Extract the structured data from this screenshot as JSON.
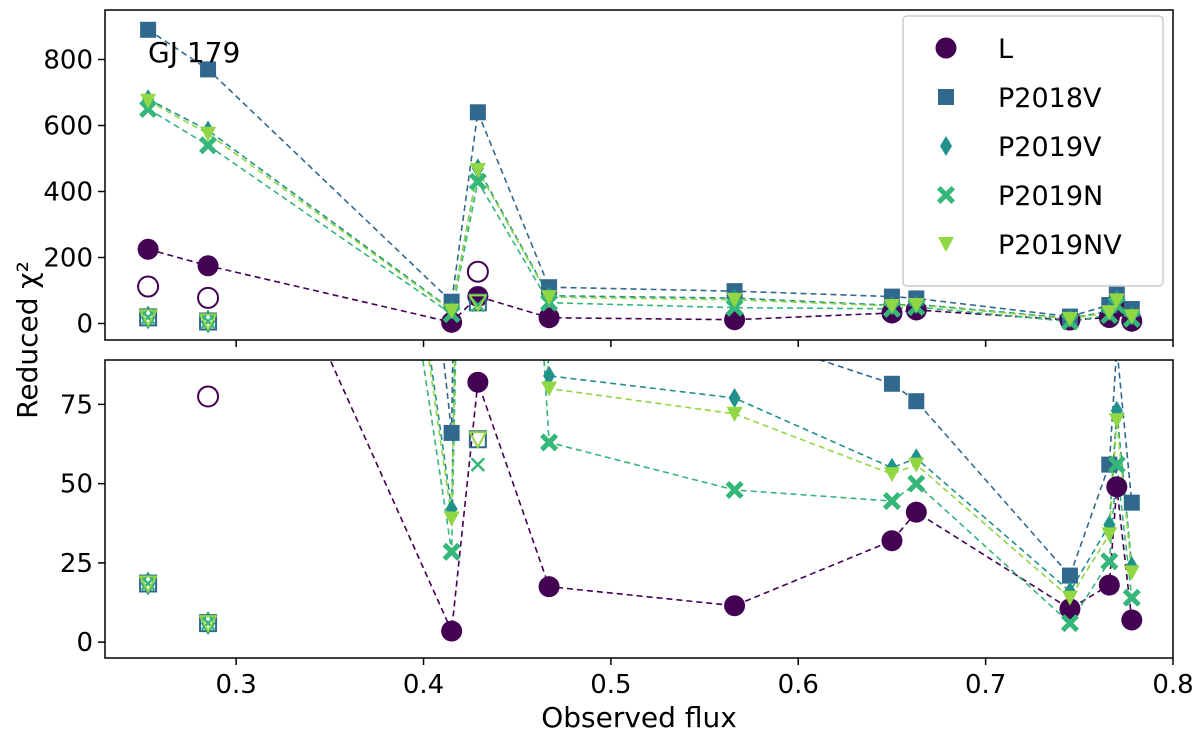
{
  "chart_data": {
    "type": "scatter",
    "annotation": "GJ 179",
    "xlabel": "Observed flux",
    "ylabel": "Reduced χ²",
    "xlim": [
      0.23,
      0.8
    ],
    "xticks": [
      0.3,
      0.4,
      0.5,
      0.6,
      0.7,
      0.8
    ],
    "tick_labels": {
      "x": [
        "0.3",
        "0.4",
        "0.5",
        "0.6",
        "0.7",
        "0.8"
      ],
      "top": [
        "0",
        "200",
        "400",
        "600",
        "800"
      ],
      "bottom": [
        "0",
        "25",
        "50",
        "75"
      ]
    },
    "panels": [
      {
        "name": "top",
        "ylim": [
          -50,
          950
        ],
        "yticks": [
          0,
          200,
          400,
          600,
          800
        ]
      },
      {
        "name": "bottom",
        "ylim": [
          -5,
          89
        ],
        "yticks": [
          0,
          25,
          50,
          75
        ]
      }
    ],
    "legend": {
      "position": "upper-right",
      "entries": [
        "L",
        "P2018V",
        "P2019V",
        "P2019N",
        "P2019NV"
      ]
    },
    "series": [
      {
        "name": "L",
        "marker": "circle",
        "color": "#440154",
        "x": [
          0.253,
          0.285,
          0.415,
          0.429,
          0.467,
          0.566,
          0.65,
          0.663,
          0.745,
          0.766,
          0.77,
          0.778
        ],
        "y": [
          225,
          175,
          3.5,
          82,
          17.5,
          11.5,
          32,
          41,
          10.5,
          18,
          49,
          7
        ]
      },
      {
        "name": "P2018V",
        "marker": "square",
        "color": "#31688e",
        "x": [
          0.253,
          0.285,
          0.415,
          0.429,
          0.467,
          0.566,
          0.65,
          0.663,
          0.745,
          0.766,
          0.77,
          0.778
        ],
        "y": [
          890,
          770,
          66,
          640,
          110,
          98,
          81.5,
          76,
          21,
          56,
          93,
          44
        ]
      },
      {
        "name": "P2019V",
        "marker": "diamond",
        "color": "#21918c",
        "x": [
          0.253,
          0.285,
          0.415,
          0.429,
          0.467,
          0.566,
          0.65,
          0.663,
          0.745,
          0.766,
          0.77,
          0.778
        ],
        "y": [
          680,
          585,
          42,
          470,
          84,
          77,
          55,
          58,
          16,
          37,
          73,
          24
        ]
      },
      {
        "name": "P2019N",
        "marker": "x",
        "color": "#35b779",
        "x": [
          0.253,
          0.285,
          0.415,
          0.429,
          0.467,
          0.566,
          0.65,
          0.663,
          0.745,
          0.766,
          0.77,
          0.778
        ],
        "y": [
          650,
          540,
          28.5,
          430,
          63,
          48,
          44.5,
          50,
          6,
          25.5,
          56,
          14
        ]
      },
      {
        "name": "P2019NV",
        "marker": "triangle-down",
        "color": "#90d743",
        "x": [
          0.253,
          0.285,
          0.415,
          0.429,
          0.467,
          0.566,
          0.65,
          0.663,
          0.745,
          0.766,
          0.77,
          0.778
        ],
        "y": [
          675,
          575,
          39,
          465,
          80,
          72,
          53,
          56,
          14,
          34,
          70,
          22
        ]
      }
    ],
    "open_markers": [
      {
        "marker": "circle-open",
        "color": "#440154",
        "x": [
          0.253,
          0.285,
          0.429
        ],
        "y": [
          112,
          77.5,
          157
        ]
      },
      {
        "marker": "square-open",
        "color": "#31688e",
        "x": [
          0.253,
          0.285,
          0.429
        ],
        "y": [
          18.5,
          6,
          64
        ]
      },
      {
        "marker": "diamond-open",
        "color": "#21918c",
        "x": [
          0.253,
          0.285
        ],
        "y": [
          18.5,
          6
        ]
      },
      {
        "marker": "x-open",
        "color": "#35b779",
        "x": [
          0.253,
          0.285,
          0.429
        ],
        "y": [
          18.5,
          6,
          56
        ]
      },
      {
        "marker": "triangle-down-open",
        "color": "#90d743",
        "x": [
          0.253,
          0.285,
          0.429
        ],
        "y": [
          18.5,
          6,
          64
        ]
      }
    ]
  }
}
